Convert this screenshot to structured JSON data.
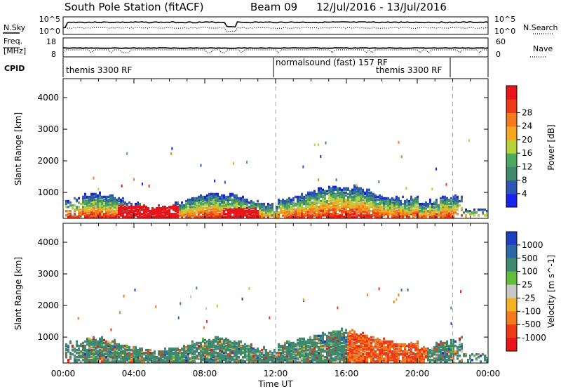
{
  "header": {
    "station": "South Pole Station (fitACF)",
    "beam": "Beam 09",
    "dates": "12/Jul/2016 - 13/Jul/2016"
  },
  "noise_panel": {
    "left_label": "N.Sky",
    "left_ticks": [
      "10^5",
      "10^0"
    ],
    "right_ticks": [
      "10^5",
      "10^0"
    ],
    "right_label": "N.Search"
  },
  "freq_panel": {
    "left_label_1": "Freq.",
    "left_label_2": "[MHz]",
    "left_ticks": [
      "18",
      "8"
    ],
    "right_ticks": [
      "60",
      "0"
    ],
    "right_label": "Nave"
  },
  "cpid_panel": {
    "label": "CPID",
    "segments": [
      {
        "label": "themis 3300 RF",
        "start_hour": 0
      },
      {
        "label": "normalsound (fast) 157 RF",
        "start_hour": 12
      },
      {
        "label": "themis 3300 RF",
        "start_hour": 22
      }
    ]
  },
  "chart_data": [
    {
      "type": "heatmap",
      "title": "Power",
      "ylabel": "Slant Range [km]",
      "xlabel": "Time UT",
      "x_ticks": [
        "00:00",
        "04:00",
        "08:00",
        "12:00",
        "16:00",
        "20:00",
        "00:00"
      ],
      "x_range_hours": [
        0,
        24
      ],
      "y_ticks": [
        1000,
        2000,
        3000,
        4000
      ],
      "ylim": [
        180,
        4600
      ],
      "colorbar_label": "Power [dB]",
      "colorbar_ticks": [
        "4",
        "8",
        "12",
        "16",
        "20",
        "24",
        "28"
      ],
      "colorbar_colors": [
        "#1a22ee",
        "#2c55b8",
        "#3f8a6e",
        "#4fa860",
        "#b8d23a",
        "#f5a623",
        "#f47a1c",
        "#ee3a16",
        "#e8151b"
      ],
      "markers_hours": [
        12,
        22
      ]
    },
    {
      "type": "heatmap",
      "title": "Velocity",
      "ylabel": "Slant Range [km]",
      "xlabel": "Time UT",
      "x_ticks": [
        "00:00",
        "04:00",
        "08:00",
        "12:00",
        "16:00",
        "20:00",
        "00:00"
      ],
      "x_range_hours": [
        0,
        24
      ],
      "y_ticks": [
        1000,
        2000,
        3000,
        4000
      ],
      "ylim": [
        180,
        4600
      ],
      "colorbar_label": "Velocity [m s^-1]",
      "colorbar_ticks": [
        "1000",
        "500",
        "100",
        "25",
        "-25",
        "-100",
        "-500",
        "-1000"
      ],
      "colorbar_colors": [
        "#1e3fbf",
        "#2c68a8",
        "#3f8a6e",
        "#5fbf3a",
        "#c8c8c8",
        "#f5b323",
        "#f57a1c",
        "#ee3a16",
        "#e8151b"
      ],
      "markers_hours": [
        12,
        22
      ]
    }
  ]
}
